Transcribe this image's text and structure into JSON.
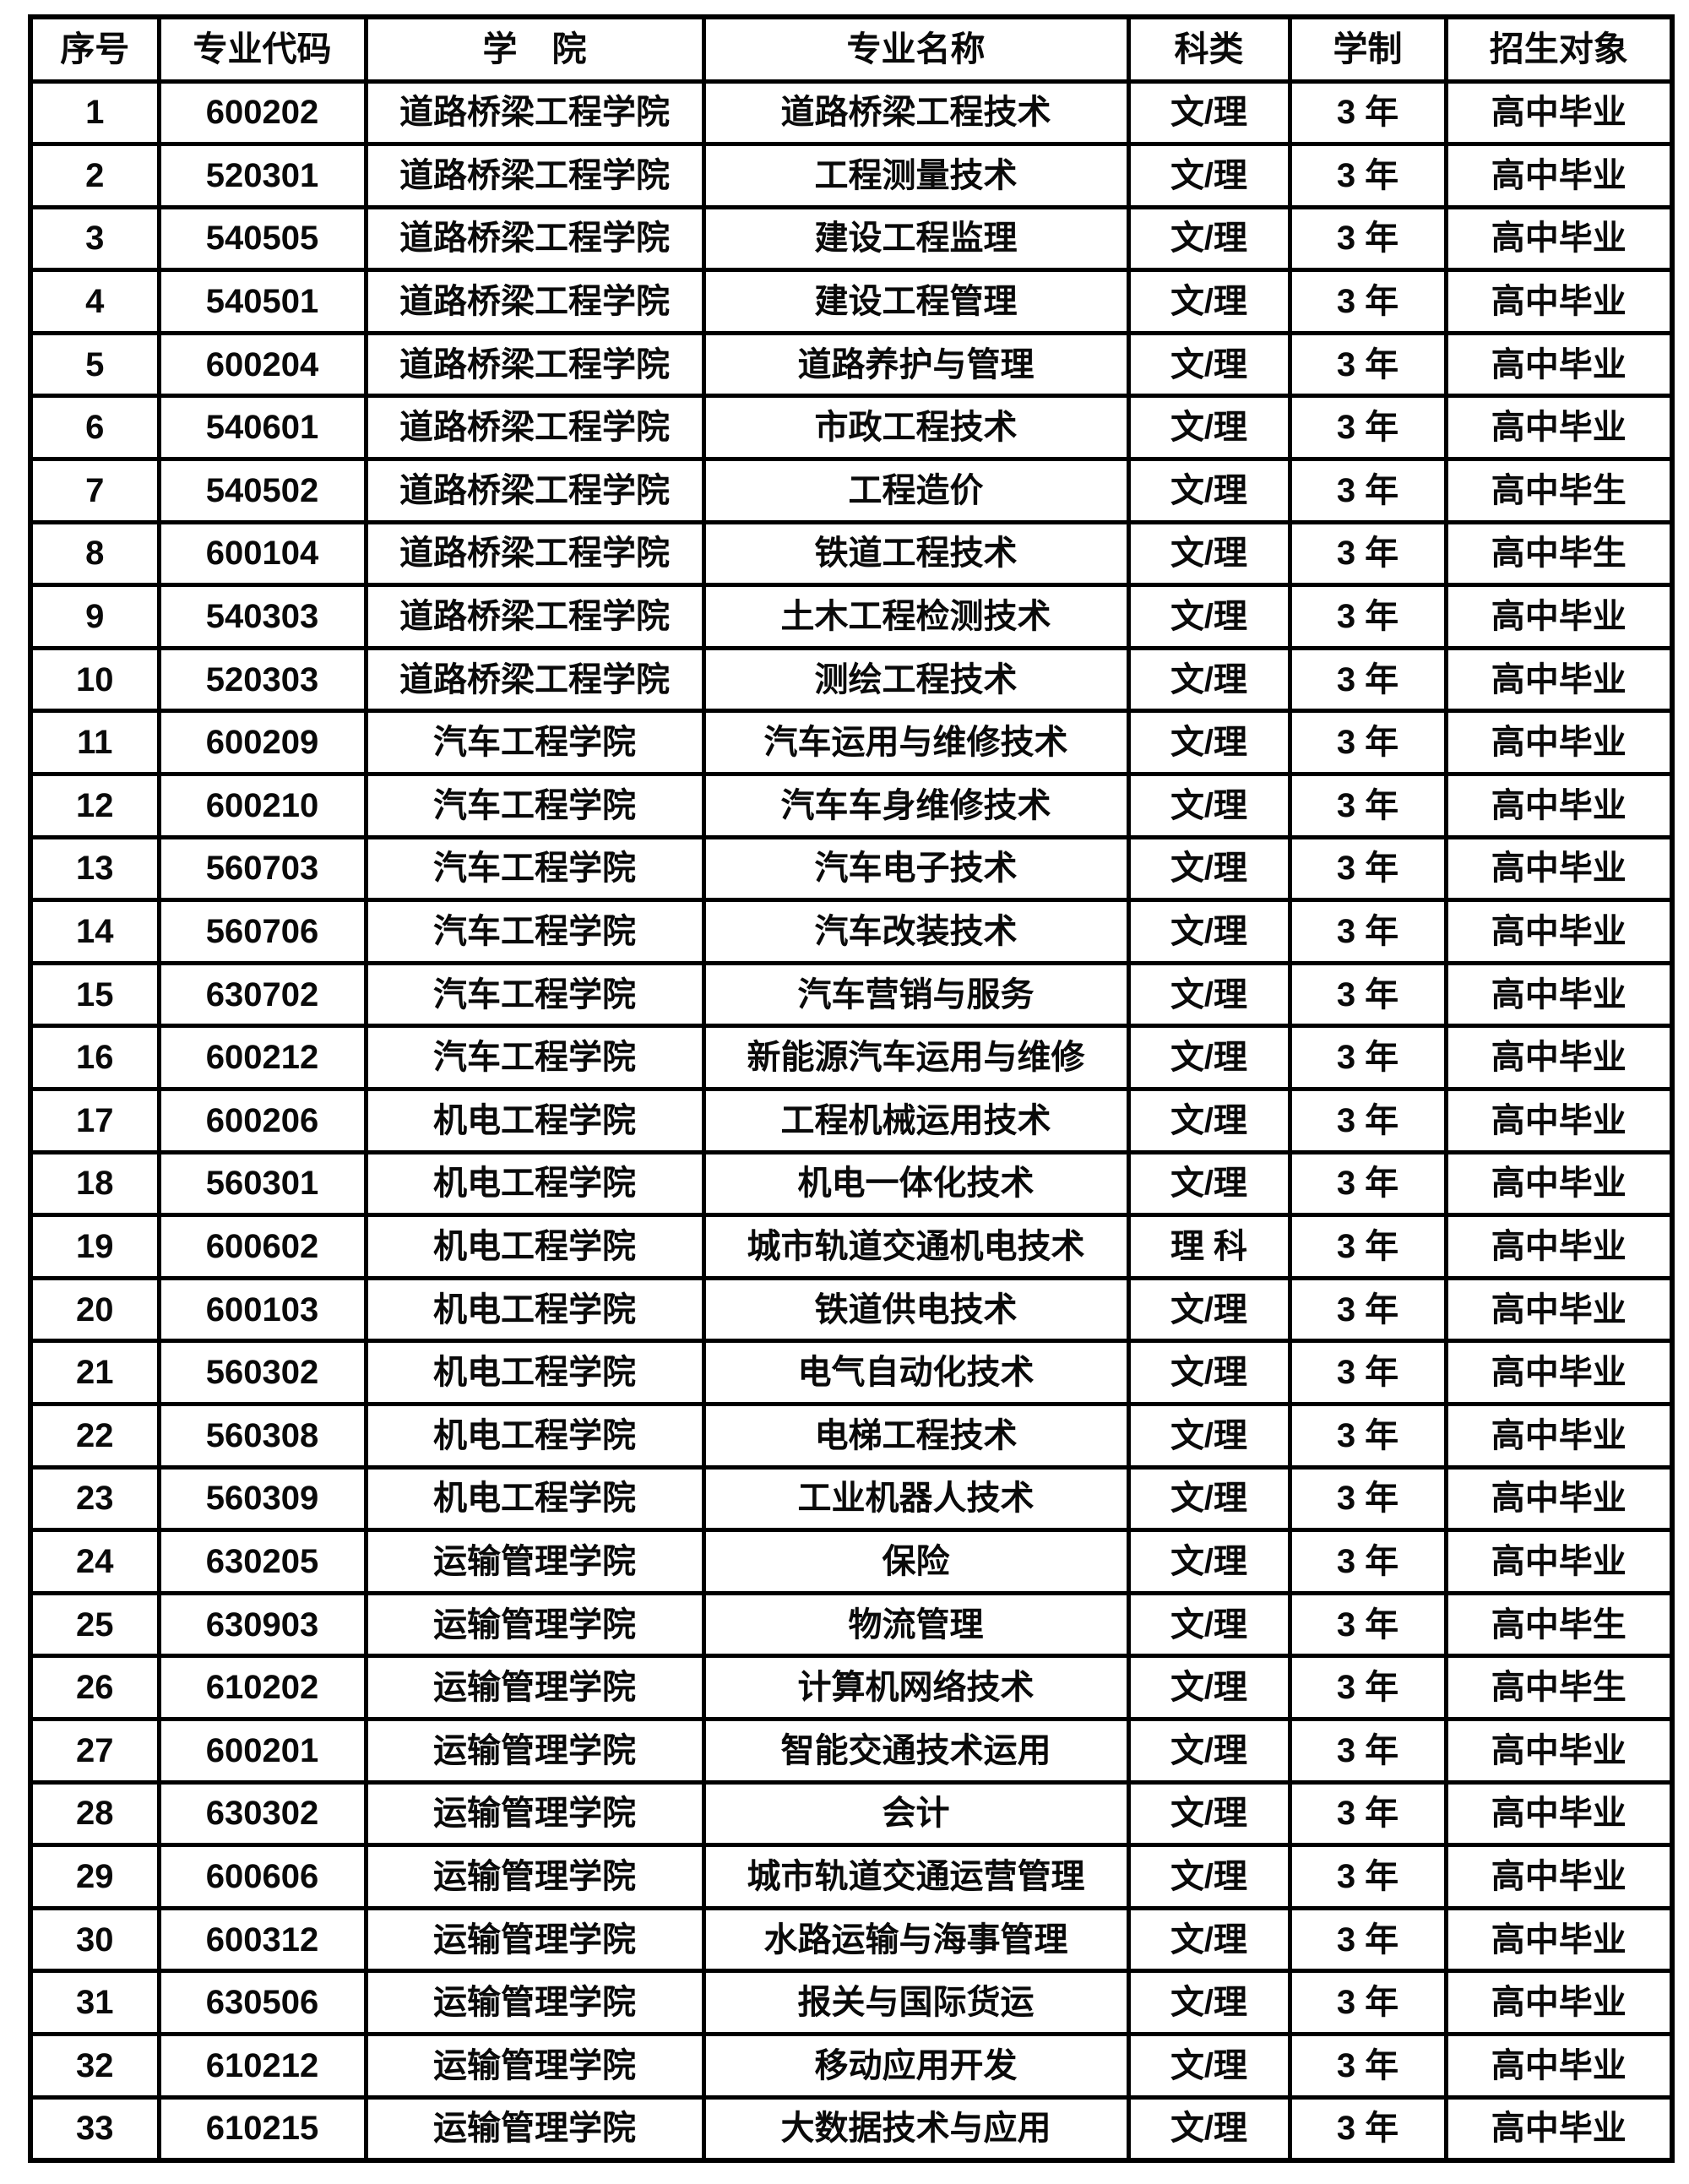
{
  "colors": {
    "background": "#ffffff",
    "border": "#000000",
    "text": "#0a0a0a"
  },
  "table": {
    "columns": [
      {
        "key": "index",
        "label": "序号"
      },
      {
        "key": "code",
        "label": "专业代码"
      },
      {
        "key": "college",
        "label": "学　院"
      },
      {
        "key": "major",
        "label": "专业名称"
      },
      {
        "key": "category",
        "label": "科类"
      },
      {
        "key": "duration",
        "label": "学制"
      },
      {
        "key": "target",
        "label": "招生对象"
      }
    ],
    "rows": [
      [
        "1",
        "600202",
        "道路桥梁工程学院",
        "道路桥梁工程技术",
        "文/理",
        "3 年",
        "高中毕业"
      ],
      [
        "2",
        "520301",
        "道路桥梁工程学院",
        "工程测量技术",
        "文/理",
        "3 年",
        "高中毕业"
      ],
      [
        "3",
        "540505",
        "道路桥梁工程学院",
        "建设工程监理",
        "文/理",
        "3 年",
        "高中毕业"
      ],
      [
        "4",
        "540501",
        "道路桥梁工程学院",
        "建设工程管理",
        "文/理",
        "3 年",
        "高中毕业"
      ],
      [
        "5",
        "600204",
        "道路桥梁工程学院",
        "道路养护与管理",
        "文/理",
        "3 年",
        "高中毕业"
      ],
      [
        "6",
        "540601",
        "道路桥梁工程学院",
        "市政工程技术",
        "文/理",
        "3 年",
        "高中毕业"
      ],
      [
        "7",
        "540502",
        "道路桥梁工程学院",
        "工程造价",
        "文/理",
        "3 年",
        "高中毕生"
      ],
      [
        "8",
        "600104",
        "道路桥梁工程学院",
        "铁道工程技术",
        "文/理",
        "3 年",
        "高中毕生"
      ],
      [
        "9",
        "540303",
        "道路桥梁工程学院",
        "土木工程检测技术",
        "文/理",
        "3 年",
        "高中毕业"
      ],
      [
        "10",
        "520303",
        "道路桥梁工程学院",
        "测绘工程技术",
        "文/理",
        "3 年",
        "高中毕业"
      ],
      [
        "11",
        "600209",
        "汽车工程学院",
        "汽车运用与维修技术",
        "文/理",
        "3 年",
        "高中毕业"
      ],
      [
        "12",
        "600210",
        "汽车工程学院",
        "汽车车身维修技术",
        "文/理",
        "3 年",
        "高中毕业"
      ],
      [
        "13",
        "560703",
        "汽车工程学院",
        "汽车电子技术",
        "文/理",
        "3 年",
        "高中毕业"
      ],
      [
        "14",
        "560706",
        "汽车工程学院",
        "汽车改装技术",
        "文/理",
        "3 年",
        "高中毕业"
      ],
      [
        "15",
        "630702",
        "汽车工程学院",
        "汽车营销与服务",
        "文/理",
        "3 年",
        "高中毕业"
      ],
      [
        "16",
        "600212",
        "汽车工程学院",
        "新能源汽车运用与维修",
        "文/理",
        "3 年",
        "高中毕业"
      ],
      [
        "17",
        "600206",
        "机电工程学院",
        "工程机械运用技术",
        "文/理",
        "3 年",
        "高中毕业"
      ],
      [
        "18",
        "560301",
        "机电工程学院",
        "机电一体化技术",
        "文/理",
        "3 年",
        "高中毕业"
      ],
      [
        "19",
        "600602",
        "机电工程学院",
        "城市轨道交通机电技术",
        "理 科",
        "3 年",
        "高中毕业"
      ],
      [
        "20",
        "600103",
        "机电工程学院",
        "铁道供电技术",
        "文/理",
        "3 年",
        "高中毕业"
      ],
      [
        "21",
        "560302",
        "机电工程学院",
        "电气自动化技术",
        "文/理",
        "3 年",
        "高中毕业"
      ],
      [
        "22",
        "560308",
        "机电工程学院",
        "电梯工程技术",
        "文/理",
        "3 年",
        "高中毕业"
      ],
      [
        "23",
        "560309",
        "机电工程学院",
        "工业机器人技术",
        "文/理",
        "3 年",
        "高中毕业"
      ],
      [
        "24",
        "630205",
        "运输管理学院",
        "保险",
        "文/理",
        "3 年",
        "高中毕业"
      ],
      [
        "25",
        "630903",
        "运输管理学院",
        "物流管理",
        "文/理",
        "3 年",
        "高中毕生"
      ],
      [
        "26",
        "610202",
        "运输管理学院",
        "计算机网络技术",
        "文/理",
        "3 年",
        "高中毕生"
      ],
      [
        "27",
        "600201",
        "运输管理学院",
        "智能交通技术运用",
        "文/理",
        "3 年",
        "高中毕业"
      ],
      [
        "28",
        "630302",
        "运输管理学院",
        "会计",
        "文/理",
        "3 年",
        "高中毕业"
      ],
      [
        "29",
        "600606",
        "运输管理学院",
        "城市轨道交通运营管理",
        "文/理",
        "3 年",
        "高中毕业"
      ],
      [
        "30",
        "600312",
        "运输管理学院",
        "水路运输与海事管理",
        "文/理",
        "3 年",
        "高中毕业"
      ],
      [
        "31",
        "630506",
        "运输管理学院",
        "报关与国际货运",
        "文/理",
        "3 年",
        "高中毕业"
      ],
      [
        "32",
        "610212",
        "运输管理学院",
        "移动应用开发",
        "文/理",
        "3 年",
        "高中毕业"
      ],
      [
        "33",
        "610215",
        "运输管理学院",
        "大数据技术与应用",
        "文/理",
        "3 年",
        "高中毕业"
      ]
    ]
  }
}
